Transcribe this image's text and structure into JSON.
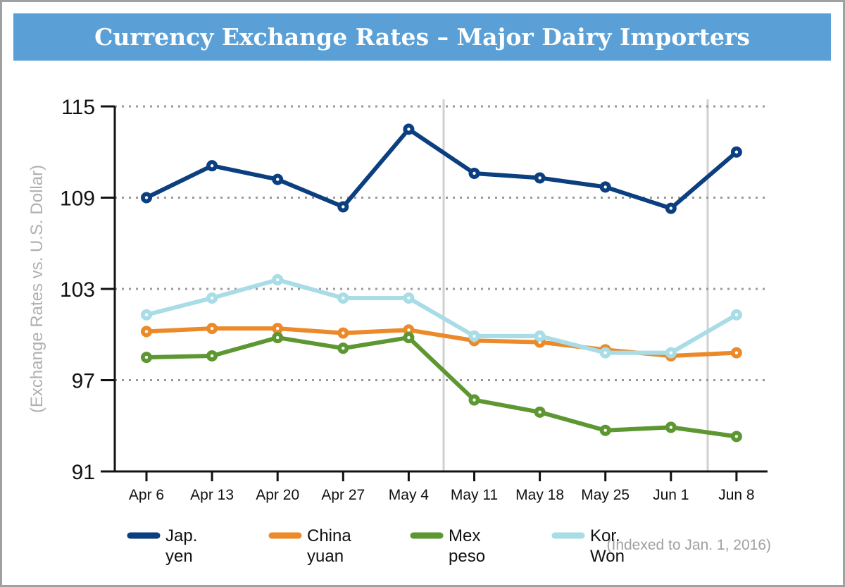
{
  "chart_data": {
    "type": "line",
    "title": "Currency Exchange Rates – Major Dairy Importers",
    "ylabel": "(Exchange Rates vs. U.S. Dollar)",
    "xlabel": "",
    "note": "(Indexed to Jan. 1, 2016)",
    "ylim": [
      91,
      115
    ],
    "yticks": [
      91,
      97,
      103,
      109,
      115
    ],
    "grid": "horizontal dotted",
    "legend_placement": "bottom",
    "categories": [
      "Apr 6",
      "Apr 13",
      "Apr 20",
      "Apr 27",
      "May 4",
      "May 11",
      "May 18",
      "May 25",
      "Jun 1",
      "Jun 8"
    ],
    "series": [
      {
        "name": "Jap. yen",
        "name_lines": [
          "Jap.",
          "yen"
        ],
        "color": "#0b3f7f",
        "values": [
          109.0,
          111.1,
          110.2,
          108.4,
          113.5,
          110.6,
          110.3,
          109.7,
          108.3,
          112.0
        ]
      },
      {
        "name": "China yuan",
        "name_lines": [
          "China",
          "yuan"
        ],
        "color": "#ec8a2a",
        "values": [
          100.2,
          100.4,
          100.4,
          100.1,
          100.3,
          99.6,
          99.5,
          99.0,
          98.6,
          98.8
        ]
      },
      {
        "name": "Mex peso",
        "name_lines": [
          "Mex",
          "peso"
        ],
        "color": "#5d9732",
        "values": [
          98.5,
          98.6,
          99.8,
          99.1,
          99.8,
          95.7,
          94.9,
          93.7,
          93.9,
          93.3
        ]
      },
      {
        "name": "Kor. Won",
        "name_lines": [
          "Kor.",
          "Won"
        ],
        "color": "#a8dce6",
        "values": [
          101.3,
          102.4,
          103.6,
          102.4,
          102.4,
          99.9,
          99.9,
          98.8,
          98.8,
          101.3
        ]
      }
    ]
  }
}
